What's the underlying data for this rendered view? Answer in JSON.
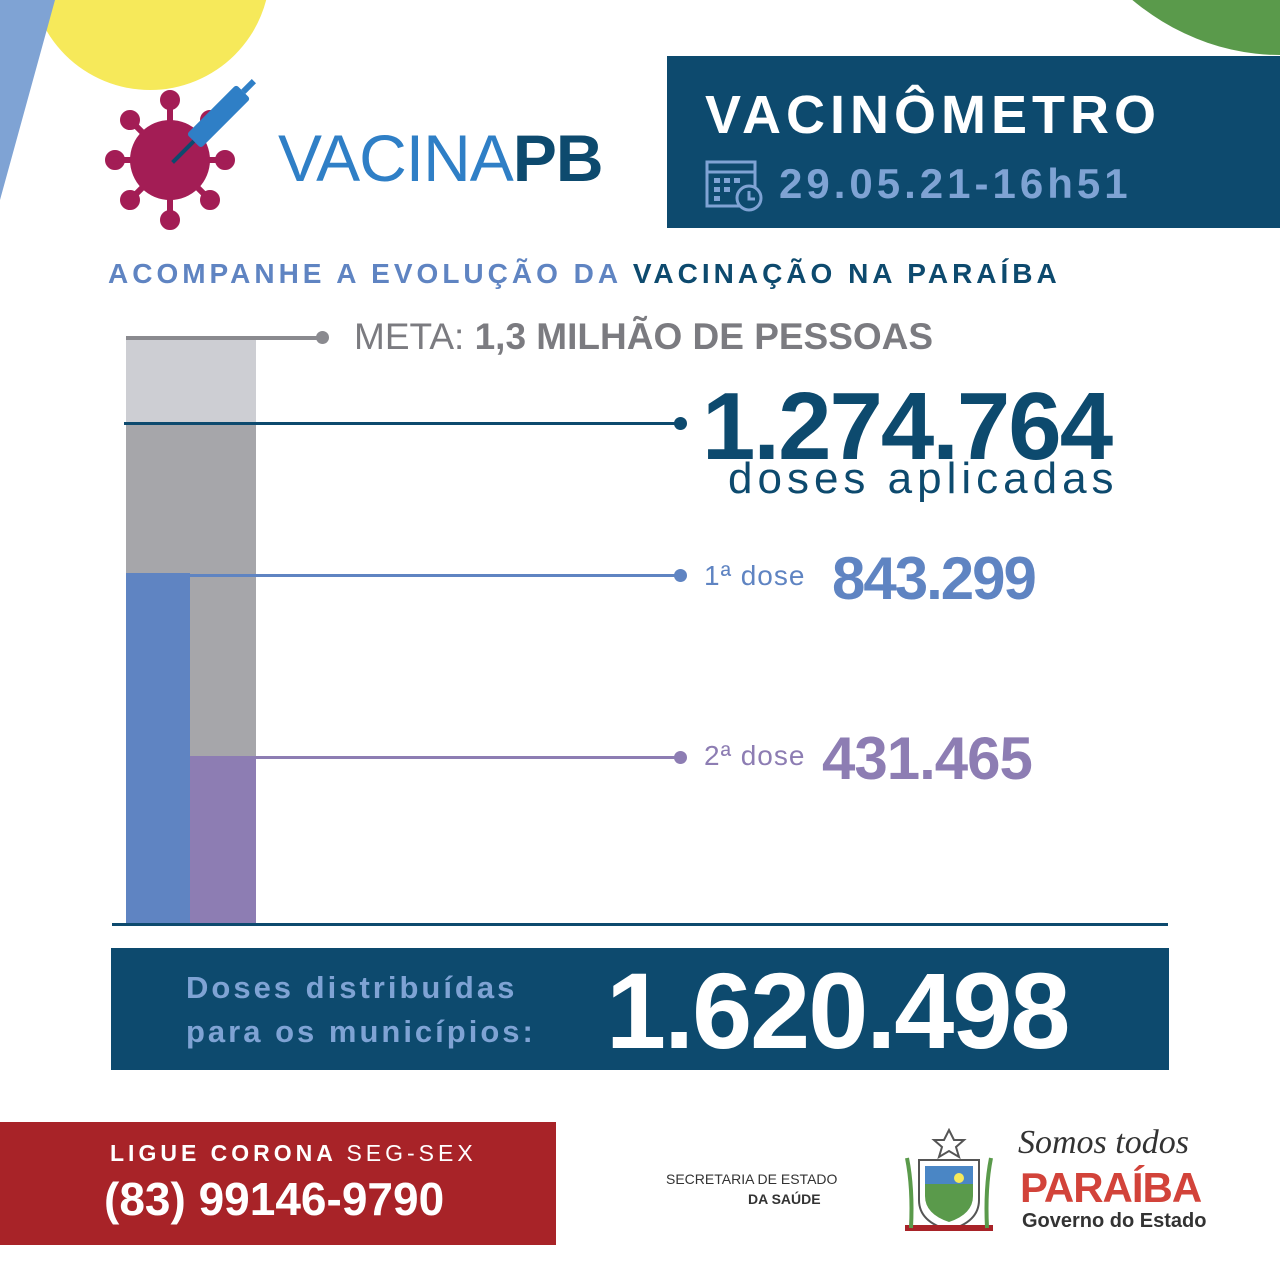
{
  "logo": {
    "text_light": "VACINA",
    "text_bold": "PB"
  },
  "header": {
    "title": "VACINÔMETRO",
    "date": "29.05.21-16h51"
  },
  "subtitle": {
    "part1": "ACOMPANHE A EVOLUÇÃO DA ",
    "part2": "VACINAÇÃO NA PARAÍBA"
  },
  "meta": {
    "label": "META: ",
    "value": "1,3 MILHÃO DE PESSOAS"
  },
  "total": {
    "value": "1.274.764",
    "label": "doses aplicadas"
  },
  "first_dose": {
    "label": "1ª dose",
    "value": "843.299"
  },
  "second_dose": {
    "label": "2ª dose",
    "value": "431.465"
  },
  "distributed": {
    "label1": "Doses distribuídas",
    "label2": "para os municípios:",
    "value": "1.620.498"
  },
  "hotline": {
    "label_bold": "LIGUE CORONA ",
    "label_light": "SEG-SEX",
    "phone": "(83) 99146-9790"
  },
  "secretaria": {
    "line1": "SECRETARIA DE ESTADO",
    "line2": "DA SAÚDE"
  },
  "gov": {
    "slogan": "Somos todos",
    "state": "PARAÍBA",
    "sub": "Governo do Estado"
  },
  "colors": {
    "navy": "#0d4a6e",
    "blue": "#5f84c2",
    "purple": "#8d7db3",
    "gray": "#a6a6aa",
    "light_gray": "#cdced3",
    "red": "#a82328",
    "yellow": "#f6e95a",
    "green": "#5a9a4b"
  }
}
